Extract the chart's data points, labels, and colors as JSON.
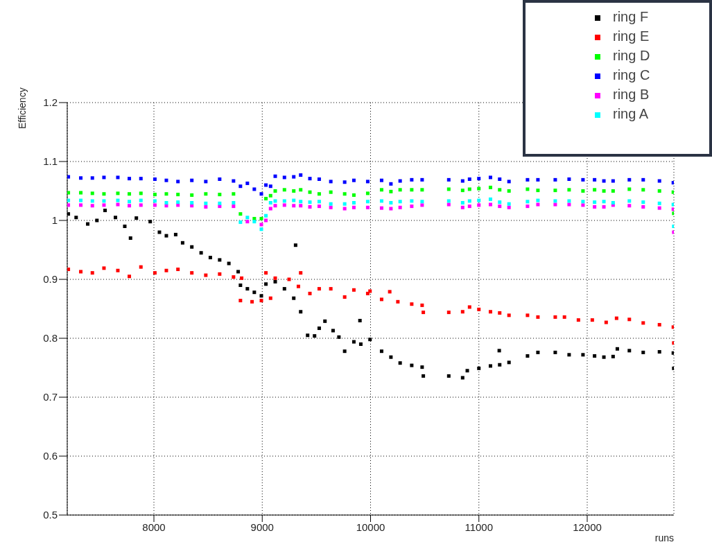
{
  "chart_data": {
    "type": "scatter",
    "xlabel": "runs",
    "ylabel": "Efficiency",
    "xlim": [
      7200,
      12800
    ],
    "ylim": [
      0.5,
      1.2
    ],
    "xticks": [
      8000,
      9000,
      10000,
      11000,
      12000
    ],
    "yticks": [
      0.5,
      0.6,
      0.7,
      0.8,
      0.9,
      1,
      1.1,
      1.2
    ],
    "grid": true,
    "legend": "top right",
    "marker": "square",
    "series": [
      {
        "name": "ring F",
        "color": "#000000",
        "x": [
          7210,
          7282,
          7389,
          7474,
          7549,
          7645,
          7731,
          7784,
          7838,
          7966,
          8051,
          8115,
          8201,
          8265,
          8350,
          8436,
          8521,
          8607,
          8692,
          8778,
          8799,
          8863,
          8927,
          8992,
          9034,
          9120,
          9205,
          9291,
          9308,
          9355,
          9419,
          9483,
          9526,
          9579,
          9654,
          9708,
          9761,
          9846,
          9902,
          9910,
          9995,
          10102,
          10188,
          10273,
          10380,
          10476,
          10487,
          10722,
          10850,
          10893,
          11000,
          11107,
          11188,
          11192,
          11278,
          11449,
          11545,
          11705,
          11833,
          11961,
          12068,
          12154,
          12239,
          12278,
          12389,
          12517,
          12667,
          12795,
          12799
        ],
        "values": [
          1.011,
          1.005,
          0.994,
          1.0,
          1.017,
          1.005,
          0.99,
          0.97,
          1.004,
          0.998,
          0.98,
          0.974,
          0.976,
          0.962,
          0.955,
          0.945,
          0.937,
          0.933,
          0.927,
          0.913,
          0.89,
          0.884,
          0.878,
          0.872,
          0.892,
          0.896,
          0.884,
          0.868,
          0.958,
          0.845,
          0.805,
          0.804,
          0.817,
          0.829,
          0.813,
          0.802,
          0.778,
          0.794,
          0.83,
          0.79,
          0.798,
          0.778,
          0.768,
          0.758,
          0.754,
          0.751,
          0.736,
          0.736,
          0.733,
          0.745,
          0.749,
          0.753,
          0.779,
          0.755,
          0.759,
          0.77,
          0.776,
          0.776,
          0.772,
          0.772,
          0.77,
          0.768,
          0.769,
          0.782,
          0.779,
          0.776,
          0.777,
          0.775,
          0.749
        ]
      },
      {
        "name": "ring E",
        "color": "#ff0000",
        "x": [
          7210,
          7325,
          7432,
          7539,
          7667,
          7773,
          7880,
          8009,
          8115,
          8222,
          8350,
          8479,
          8607,
          8735,
          8810,
          8799,
          8906,
          8992,
          9077,
          9034,
          9120,
          9248,
          9355,
          9334,
          9440,
          9526,
          9633,
          9761,
          9846,
          9974,
          9995,
          10102,
          10177,
          10252,
          10380,
          10476,
          10487,
          10722,
          10850,
          10914,
          11000,
          11107,
          11192,
          11278,
          11449,
          11545,
          11705,
          11790,
          11919,
          12047,
          12175,
          12271,
          12389,
          12517,
          12667,
          12795,
          12799
        ],
        "values": [
          0.917,
          0.913,
          0.911,
          0.919,
          0.915,
          0.905,
          0.921,
          0.911,
          0.915,
          0.917,
          0.911,
          0.907,
          0.909,
          0.904,
          0.902,
          0.864,
          0.862,
          0.864,
          0.868,
          0.911,
          0.902,
          0.9,
          0.911,
          0.888,
          0.876,
          0.884,
          0.884,
          0.87,
          0.882,
          0.876,
          0.88,
          0.866,
          0.879,
          0.862,
          0.858,
          0.856,
          0.844,
          0.844,
          0.845,
          0.853,
          0.849,
          0.845,
          0.843,
          0.839,
          0.839,
          0.836,
          0.836,
          0.836,
          0.831,
          0.831,
          0.827,
          0.834,
          0.832,
          0.826,
          0.823,
          0.819,
          0.792
        ]
      },
      {
        "name": "ring D",
        "color": "#00ff00",
        "x": [
          7210,
          7325,
          7432,
          7539,
          7667,
          7773,
          7880,
          8009,
          8115,
          8222,
          8350,
          8479,
          8607,
          8735,
          8799,
          8863,
          8927,
          8992,
          9034,
          9077,
          9120,
          9205,
          9291,
          9355,
          9440,
          9526,
          9633,
          9761,
          9846,
          9974,
          10102,
          10188,
          10273,
          10380,
          10476,
          10722,
          10850,
          10914,
          11000,
          11107,
          11192,
          11278,
          11449,
          11545,
          11705,
          11833,
          11961,
          12068,
          12154,
          12239,
          12389,
          12517,
          12667,
          12795,
          12799
        ],
        "values": [
          1.047,
          1.047,
          1.046,
          1.045,
          1.046,
          1.045,
          1.046,
          1.044,
          1.045,
          1.044,
          1.043,
          1.045,
          1.044,
          1.045,
          1.011,
          null,
          1.003,
          1.003,
          1.037,
          1.042,
          1.05,
          1.052,
          1.05,
          1.052,
          1.048,
          1.045,
          1.048,
          1.045,
          1.043,
          1.046,
          1.052,
          1.049,
          1.052,
          1.052,
          1.052,
          1.053,
          1.051,
          1.053,
          1.054,
          1.056,
          1.052,
          1.05,
          1.053,
          1.051,
          1.051,
          1.052,
          1.05,
          1.052,
          1.05,
          1.05,
          1.053,
          1.052,
          1.05,
          1.048,
          1.012
        ]
      },
      {
        "name": "ring C",
        "color": "#0000ff",
        "x": [
          7210,
          7325,
          7432,
          7539,
          7667,
          7773,
          7880,
          8009,
          8115,
          8222,
          8350,
          8479,
          8607,
          8735,
          8799,
          8863,
          8927,
          8992,
          9034,
          9077,
          9120,
          9205,
          9291,
          9355,
          9440,
          9526,
          9633,
          9761,
          9846,
          9974,
          10102,
          10188,
          10273,
          10380,
          10476,
          10722,
          10850,
          10914,
          11000,
          11107,
          11192,
          11278,
          11449,
          11545,
          11705,
          11833,
          11961,
          12068,
          12154,
          12239,
          12389,
          12517,
          12667,
          12795
        ],
        "values": [
          1.074,
          1.072,
          1.072,
          1.073,
          1.073,
          1.071,
          1.071,
          1.07,
          1.068,
          1.066,
          1.068,
          1.066,
          1.07,
          1.067,
          1.058,
          1.063,
          1.053,
          1.045,
          1.06,
          1.058,
          1.075,
          1.073,
          1.074,
          1.077,
          1.071,
          1.07,
          1.066,
          1.065,
          1.068,
          1.066,
          1.068,
          1.062,
          1.067,
          1.069,
          1.069,
          1.069,
          1.067,
          1.07,
          1.071,
          1.073,
          1.07,
          1.066,
          1.069,
          1.069,
          1.069,
          1.07,
          1.069,
          1.069,
          1.067,
          1.067,
          1.069,
          1.069,
          1.067,
          1.064
        ]
      },
      {
        "name": "ring B",
        "color": "#ff00ff",
        "x": [
          7210,
          7325,
          7432,
          7539,
          7667,
          7773,
          7880,
          8009,
          8115,
          8222,
          8350,
          8479,
          8607,
          8735,
          8799,
          8863,
          8927,
          8992,
          9034,
          9077,
          9120,
          9205,
          9291,
          9355,
          9440,
          9526,
          9633,
          9761,
          9846,
          9974,
          10102,
          10188,
          10273,
          10380,
          10476,
          10722,
          10850,
          10914,
          11000,
          11107,
          11192,
          11278,
          11449,
          11545,
          11705,
          11833,
          11961,
          12068,
          12154,
          12239,
          12389,
          12517,
          12667,
          12795,
          12799
        ],
        "values": [
          1.026,
          1.026,
          1.025,
          1.026,
          1.027,
          1.025,
          1.026,
          1.026,
          1.025,
          1.026,
          1.025,
          1.023,
          1.024,
          1.024,
          null,
          0.998,
          null,
          0.993,
          1.0,
          1.02,
          1.025,
          1.026,
          1.025,
          1.025,
          1.023,
          1.024,
          1.022,
          1.02,
          1.022,
          1.022,
          1.021,
          1.02,
          1.022,
          1.024,
          1.026,
          1.027,
          1.022,
          1.024,
          1.026,
          1.027,
          1.024,
          1.022,
          1.024,
          1.027,
          1.027,
          1.027,
          1.026,
          1.023,
          1.023,
          1.026,
          1.025,
          1.023,
          1.021,
          1.019,
          0.98
        ]
      },
      {
        "name": "ring A",
        "color": "#00ffff",
        "x": [
          7210,
          7325,
          7432,
          7539,
          7667,
          7773,
          7880,
          8009,
          8115,
          8222,
          8350,
          8479,
          8607,
          8735,
          8799,
          8863,
          8927,
          8992,
          9034,
          9077,
          9120,
          9205,
          9291,
          9355,
          9440,
          9526,
          9633,
          9761,
          9846,
          9974,
          10102,
          10188,
          10273,
          10380,
          10476,
          10722,
          10850,
          10914,
          11000,
          11107,
          11192,
          11278,
          11449,
          11545,
          11705,
          11833,
          11961,
          12068,
          12154,
          12239,
          12389,
          12517,
          12667,
          12795,
          12799
        ],
        "values": [
          1.034,
          1.034,
          1.033,
          1.033,
          1.034,
          1.032,
          1.034,
          1.033,
          1.03,
          1.031,
          1.03,
          1.029,
          1.029,
          1.03,
          0.997,
          1.005,
          0.998,
          0.985,
          1.008,
          1.03,
          1.033,
          1.033,
          1.034,
          1.032,
          1.031,
          1.032,
          1.028,
          1.028,
          1.03,
          1.032,
          1.033,
          1.03,
          1.032,
          1.033,
          1.032,
          1.033,
          1.03,
          1.033,
          1.034,
          1.036,
          1.031,
          1.028,
          1.032,
          1.034,
          1.033,
          1.033,
          1.032,
          1.031,
          1.032,
          1.03,
          1.033,
          1.031,
          1.029,
          1.027,
          0.99
        ]
      }
    ]
  }
}
